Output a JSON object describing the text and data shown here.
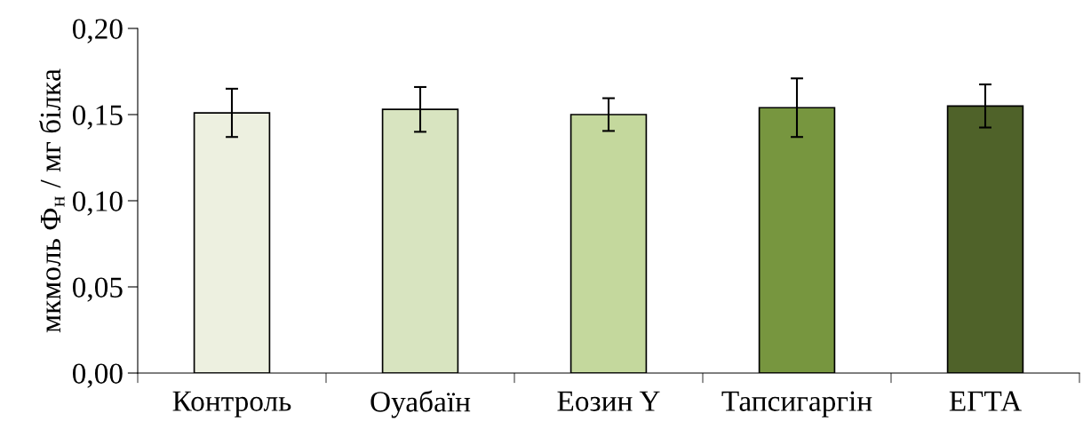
{
  "chart_data": {
    "type": "bar",
    "ylabel": "мкмоль Ф$_{н}$ / мг білка",
    "categories": [
      "Контроль",
      "Оуабаїн",
      "Еозин Y",
      "Тапсигаргін",
      "ЕГТА"
    ],
    "values": [
      0.151,
      0.153,
      0.15,
      0.154,
      0.155
    ],
    "errors": [
      0.014,
      0.013,
      0.0095,
      0.017,
      0.0125
    ],
    "colors": [
      "#edf0e0",
      "#d8e4c0",
      "#c4d89d",
      "#77963f",
      "#4f6229"
    ],
    "ylim": [
      0,
      0.2
    ],
    "yticks": [
      {
        "value": 0,
        "label": "0,00"
      },
      {
        "value": 0.05,
        "label": "0,05"
      },
      {
        "value": 0.1,
        "label": "0,10"
      },
      {
        "value": 0.15,
        "label": "0,15"
      },
      {
        "value": 0.2,
        "label": "0,20"
      }
    ],
    "grid": false,
    "legend": false
  }
}
